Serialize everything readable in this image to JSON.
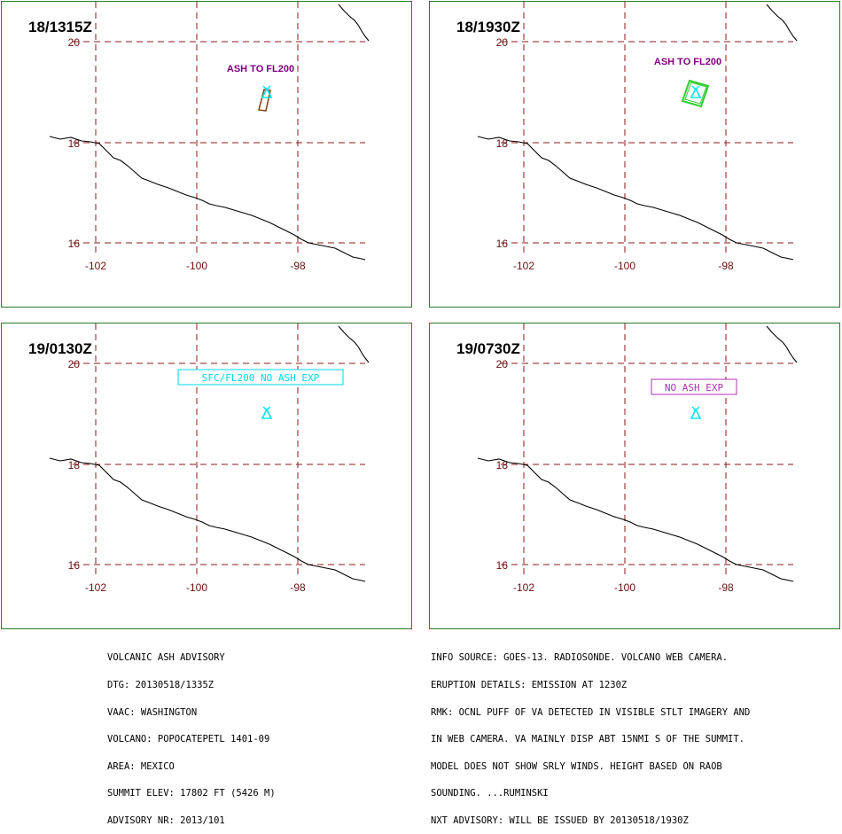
{
  "panels": [
    {
      "time_label": "18/1315Z",
      "annotation": {
        "text": "ASH TO FL200",
        "style": "plain",
        "color": "#800080"
      },
      "ash_polygon": {
        "color": "#8b4513"
      },
      "volcano_color": "#00e5ee"
    },
    {
      "time_label": "18/1930Z",
      "annotation": {
        "text": "ASH TO FL200",
        "style": "plain",
        "color": "#800080"
      },
      "ash_polygon": {
        "color": "#33cc33"
      },
      "volcano_color": "#00e5ee"
    },
    {
      "time_label": "19/0130Z",
      "annotation": {
        "text": "SFC/FL200 NO ASH EXP",
        "style": "boxed",
        "color": "#00d8e8"
      },
      "volcano_color": "#00e5ee"
    },
    {
      "time_label": "19/0730Z",
      "annotation": {
        "text": "NO ASH EXP",
        "style": "boxed",
        "color": "#b030b0"
      },
      "volcano_color": "#00e5ee"
    }
  ],
  "map": {
    "lat_ticks": [
      "20",
      "18",
      "16"
    ],
    "lon_ticks": [
      "-102",
      "-100",
      "-98"
    ],
    "grid_color": "#8b1a1a",
    "coast_color": "#000000",
    "border_color": "#2b7a2b"
  },
  "advisory_left": [
    "VOLCANIC ASH ADVISORY",
    "DTG: 20130518/1335Z",
    "VAAC: WASHINGTON",
    "VOLCANO: POPOCATEPETL 1401-09",
    "AREA: MEXICO",
    "SUMMIT ELEV: 17802 FT (5426 M)",
    "ADVISORY NR: 2013/101"
  ],
  "advisory_right": [
    "INFO SOURCE: GOES-13. RADIOSONDE. VOLCANO WEB CAMERA.",
    "ERUPTION DETAILS: EMISSION AT 1230Z",
    "RMK: OCNL PUFF OF VA DETECTED IN VISIBLE STLT IMAGERY AND",
    "IN WEB CAMERA. VA MAINLY DISP ABT 15NMI S OF THE SUMMIT.",
    "MODEL DOES NOT SHOW SRLY WINDS. HEIGHT BASED ON RAOB",
    "SOUNDING. ...RUMINSKI",
    "NXT ADVISORY: WILL BE ISSUED BY 20130518/1930Z"
  ]
}
